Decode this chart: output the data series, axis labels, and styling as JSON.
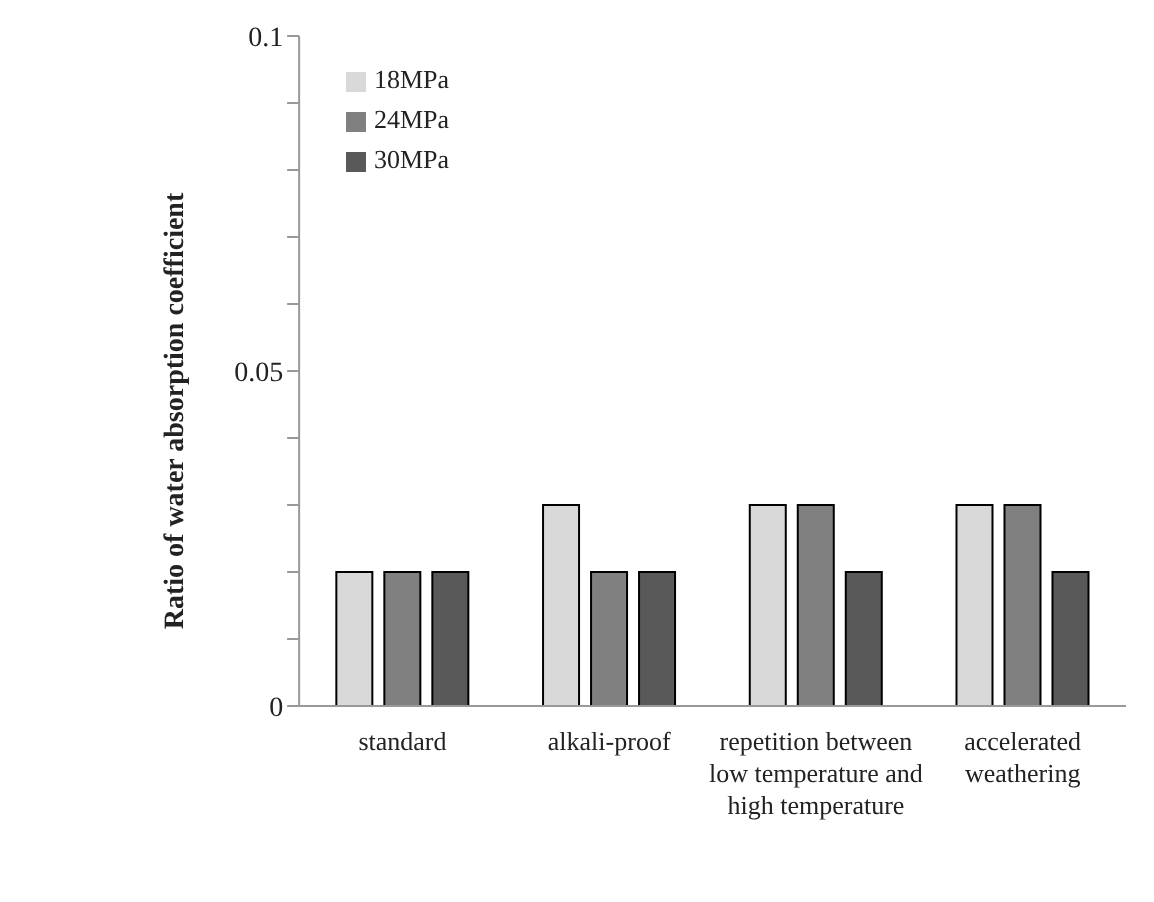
{
  "chart_data": {
    "type": "bar",
    "ylabel": "Ratio of water absorption coefficient",
    "categories": [
      "standard",
      "alkali-proof",
      "repetition between low temperature and high temperature",
      "accelerated weathering"
    ],
    "series": [
      {
        "name": "18MPa",
        "color": "#d9d9d9",
        "values": [
          0.02,
          0.03,
          0.03,
          0.03
        ]
      },
      {
        "name": "24MPa",
        "color": "#808080",
        "values": [
          0.02,
          0.02,
          0.03,
          0.03
        ]
      },
      {
        "name": "30MPa",
        "color": "#595959",
        "values": [
          0.02,
          0.02,
          0.02,
          0.02
        ]
      }
    ],
    "ylim": [
      0,
      0.1
    ],
    "yticks": [
      0,
      {
        "value": 0.01,
        "label": null
      },
      {
        "value": 0.02,
        "label": null
      },
      {
        "value": 0.03,
        "label": null
      },
      {
        "value": 0.04,
        "label": null
      },
      0.05,
      {
        "value": 0.06,
        "label": null
      },
      {
        "value": 0.07,
        "label": null
      },
      {
        "value": 0.08,
        "label": null
      },
      {
        "value": 0.09,
        "label": null
      },
      0.1
    ],
    "grid": false,
    "legend": "top left"
  }
}
